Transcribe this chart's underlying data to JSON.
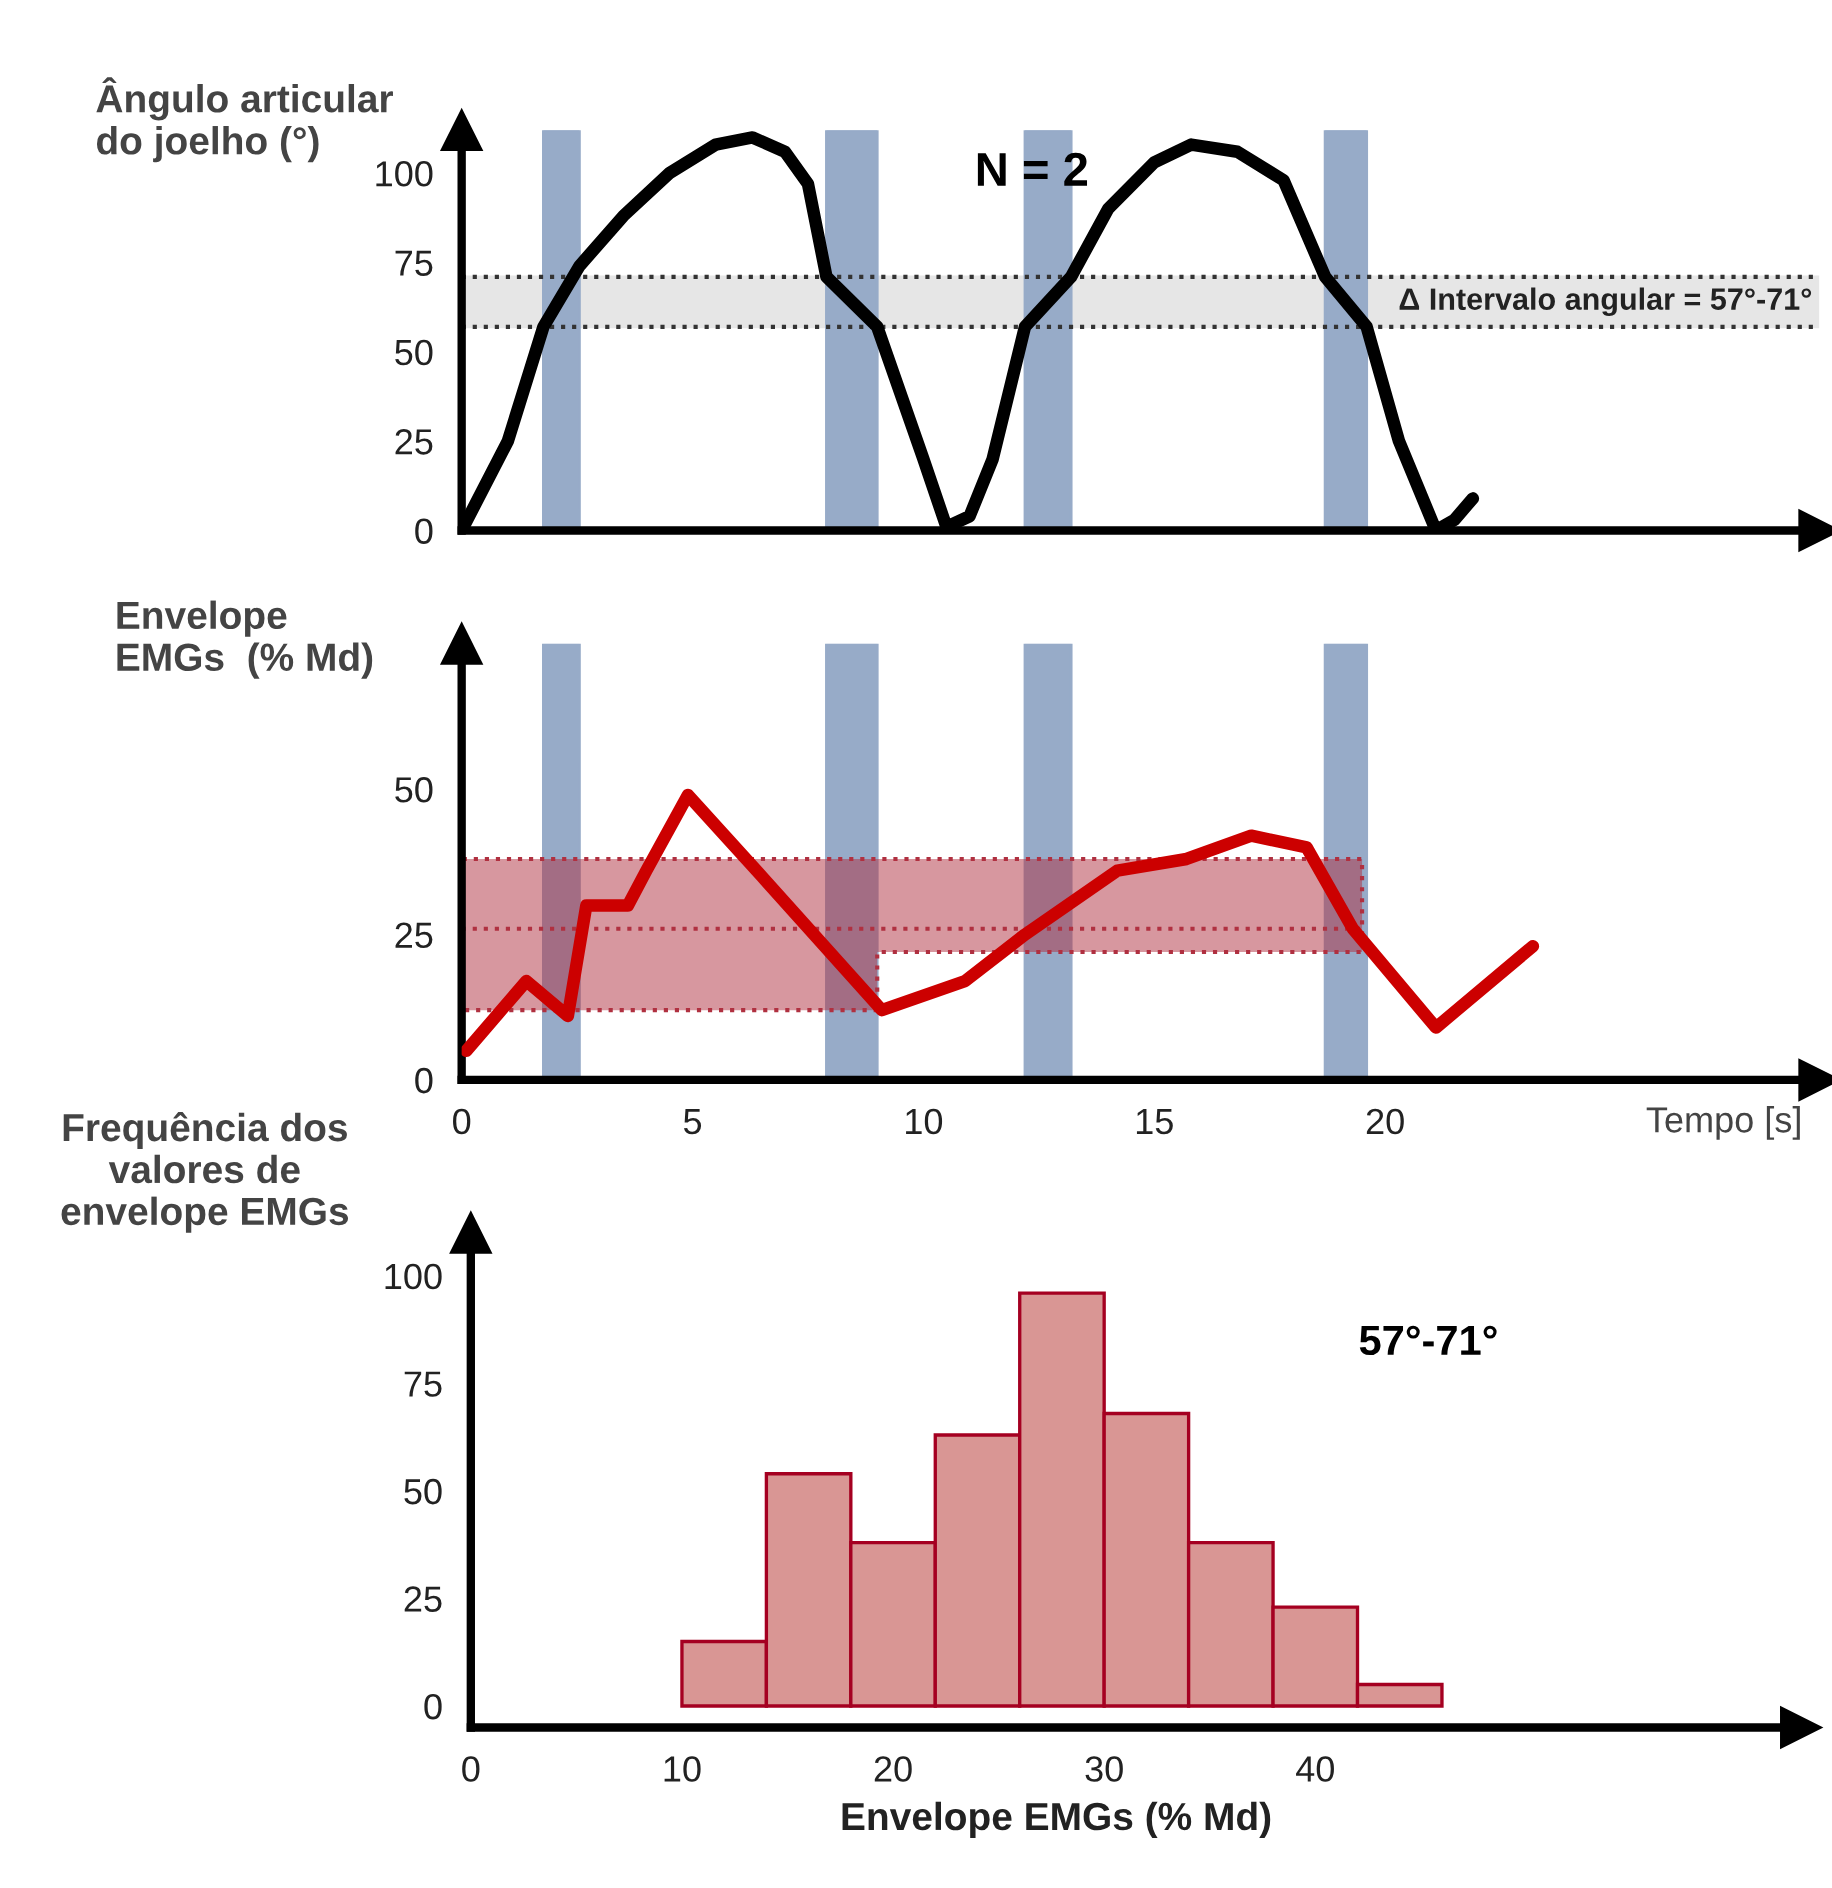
{
  "chart_data": [
    {
      "type": "line",
      "title": "N = 2",
      "ylabel": "Ângulo articular\ndo joelho (°)",
      "xlim": [
        0,
        29.4
      ],
      "ylim": [
        0,
        112
      ],
      "yticks": [
        0,
        25,
        50,
        75,
        100
      ],
      "tick_labels": "y",
      "grid": false,
      "line_style": "solid",
      "marker": "none",
      "series": [
        {
          "color": "#000000",
          "x": [
            0,
            1,
            1.77,
            2.55,
            3.5,
            4.5,
            5.5,
            6.3,
            7,
            7.5,
            7.9,
            9,
            10,
            10.5,
            11,
            11.5,
            12.2,
            13.2,
            14,
            15,
            15.8,
            16.8,
            17.8,
            18.7,
            19.6,
            20.3,
            21.1,
            21.5,
            21.9
          ],
          "values": [
            0,
            25,
            57,
            74,
            88,
            100,
            108,
            110,
            106,
            97,
            71,
            57,
            20,
            1,
            4,
            20,
            57,
            71,
            90,
            103,
            108,
            106,
            98,
            71,
            57,
            25,
            0,
            3,
            9
          ]
        }
      ],
      "ref_lines": [
        {
          "axis": "y",
          "value": 57,
          "line_style": "dotted",
          "color": "#333333"
        },
        {
          "axis": "y",
          "value": 71,
          "line_style": "dotted",
          "color": "#333333"
        }
      ],
      "bands": [
        {
          "axis": "y",
          "from": 57,
          "to": 71,
          "label": "Δ Intervalo angular = 57°-71°",
          "color": "#e6e6e6"
        },
        {
          "axis": "x",
          "from": 1.77,
          "to": 2.55,
          "color": "#97abc8"
        },
        {
          "axis": "x",
          "from": 7.9,
          "to": 9.0,
          "color": "#97abc8"
        },
        {
          "axis": "x",
          "from": 12.2,
          "to": 13.2,
          "color": "#97abc8"
        },
        {
          "axis": "x",
          "from": 18.7,
          "to": 19.6,
          "color": "#97abc8"
        }
      ]
    },
    {
      "type": "line",
      "ylabel": "Envelope\nEMGs  (% Md)",
      "xlabel": "Tempo [s]",
      "xlim": [
        0,
        29.4
      ],
      "xticks": [
        0,
        5,
        10,
        15,
        20
      ],
      "ylim": [
        0,
        75
      ],
      "yticks": [
        0,
        25,
        50
      ],
      "grid": false,
      "marker": "none",
      "series": [
        {
          "color": "#cc0000",
          "x": [
            0.1,
            1.4,
            2.3,
            2.7,
            3.6,
            4.0,
            4.9,
            6.5,
            9.1,
            10.9,
            12.2,
            14.2,
            15.7,
            17.1,
            18.3,
            19.3,
            21.1,
            23.2
          ],
          "values": [
            5,
            17,
            11,
            30,
            30,
            36,
            49,
            35,
            12,
            17,
            25,
            36,
            38,
            42,
            40,
            26,
            9,
            23
          ]
        },
        {
          "type": "line",
          "color": "#b03040",
          "line_style": "dotted",
          "x": [
            0,
            9,
            9,
            19.5
          ],
          "values": [
            26,
            26,
            26,
            26
          ],
          "lower": [
            12,
            12,
            22,
            22
          ],
          "upper": [
            38,
            38,
            38,
            38
          ]
        }
      ],
      "bands": [
        {
          "axis": "x",
          "from": 1.77,
          "to": 2.55,
          "color": "#97abc8"
        },
        {
          "axis": "x",
          "from": 7.9,
          "to": 9.0,
          "color": "#97abc8"
        },
        {
          "axis": "x",
          "from": 12.2,
          "to": 13.2,
          "color": "#97abc8"
        },
        {
          "axis": "x",
          "from": 18.7,
          "to": 19.6,
          "color": "#97abc8"
        }
      ]
    },
    {
      "type": "histogram",
      "title": "57°-71°",
      "ylabel": "Frequência dos\nvalores de\nenvelope EMGs",
      "xlabel": "Envelope EMGs (% Md)",
      "xlim": [
        0,
        63
      ],
      "xticks": [
        0,
        10,
        20,
        30,
        40
      ],
      "ylim": [
        -5,
        110
      ],
      "yticks": [
        0,
        25,
        50,
        75,
        100
      ],
      "grid": false,
      "color": "#d99694",
      "bins": [
        10,
        14,
        18,
        22,
        26,
        30,
        34,
        38,
        42,
        46
      ],
      "values": [
        15,
        54,
        38,
        63,
        96,
        68,
        38,
        23,
        5
      ]
    }
  ]
}
